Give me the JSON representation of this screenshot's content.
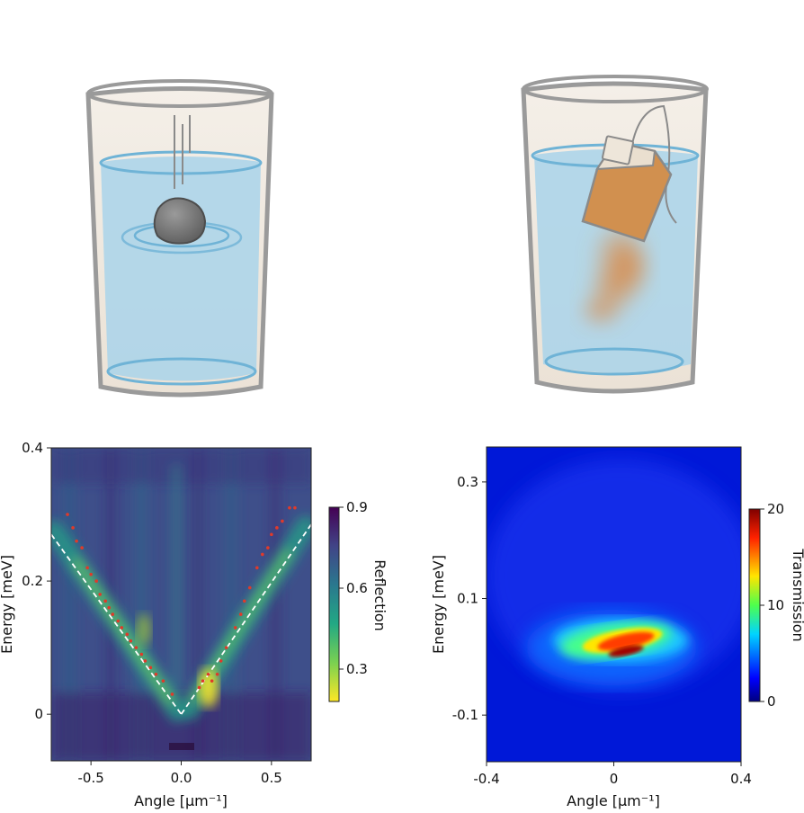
{
  "illustrations": [
    {
      "name": "glass-with-stone",
      "objects": [
        "stone",
        "ripples",
        "water"
      ]
    },
    {
      "name": "glass-with-tea-bag",
      "objects": [
        "tea-bag",
        "tea-plume",
        "water"
      ]
    }
  ],
  "colors": {
    "water": "#a9d4ea",
    "water_rim": "#6fb3d6",
    "glass_outline": "#9a9a9a",
    "glass_fill": "#efe6dc",
    "stone": "#7e7e7e",
    "tea": "#d88a4a",
    "dashed_line": "#ffffff",
    "points": "#e03a2a"
  },
  "chart_data": [
    {
      "type": "heatmap",
      "colormap": "viridis-reversed",
      "xlabel": "Angle [μm⁻¹]",
      "ylabel": "Energy  [meV]",
      "xlim": [
        -0.72,
        0.72
      ],
      "ylim": [
        -0.07,
        0.4
      ],
      "xticks": [
        -0.5,
        0.0,
        0.5
      ],
      "xtick_labels": [
        "-0.5",
        "0.0",
        "0.5"
      ],
      "yticks": [
        0,
        0.2,
        0.4
      ],
      "ytick_labels": [
        "0",
        "0.2",
        "0.4"
      ],
      "colorbar": {
        "label": "Reflection",
        "range": [
          0.18,
          0.9
        ],
        "ticks": [
          0.3,
          0.6,
          0.9
        ],
        "tick_labels": [
          "0.3",
          "0.6",
          "0.9"
        ]
      },
      "dashed_lines": [
        {
          "x": [
            -0.72,
            0.0
          ],
          "y": [
            0.27,
            0.0
          ]
        },
        {
          "x": [
            0.0,
            0.72
          ],
          "y": [
            0.0,
            0.285
          ]
        }
      ],
      "points": {
        "x": [
          -0.63,
          -0.6,
          -0.58,
          -0.55,
          -0.52,
          -0.5,
          -0.47,
          -0.45,
          -0.42,
          -0.4,
          -0.38,
          -0.35,
          -0.33,
          -0.3,
          -0.28,
          -0.25,
          -0.22,
          -0.2,
          -0.17,
          -0.14,
          -0.1,
          -0.05,
          0.1,
          0.12,
          0.15,
          0.17,
          0.2,
          0.22,
          0.25,
          0.3,
          0.33,
          0.35,
          0.38,
          0.42,
          0.45,
          0.48,
          0.5,
          0.53,
          0.56,
          0.6,
          0.63
        ],
        "y": [
          0.3,
          0.28,
          0.26,
          0.25,
          0.22,
          0.21,
          0.2,
          0.18,
          0.17,
          0.16,
          0.15,
          0.14,
          0.13,
          0.12,
          0.11,
          0.1,
          0.09,
          0.08,
          0.07,
          0.06,
          0.05,
          0.03,
          0.04,
          0.05,
          0.06,
          0.05,
          0.06,
          0.08,
          0.1,
          0.13,
          0.15,
          0.17,
          0.19,
          0.22,
          0.24,
          0.25,
          0.27,
          0.28,
          0.29,
          0.31,
          0.31
        ]
      }
    },
    {
      "type": "heatmap",
      "colormap": "jet",
      "xlabel": "Angle [μm⁻¹]",
      "ylabel": "Energy  [meV]",
      "xlim": [
        -0.4,
        0.4
      ],
      "ylim": [
        -0.18,
        0.36
      ],
      "xticks": [
        -0.4,
        0,
        0.4
      ],
      "xtick_labels": [
        "-0.4",
        "0",
        "0.4"
      ],
      "yticks": [
        -0.1,
        0.1,
        0.3
      ],
      "ytick_labels": [
        "-0.1",
        "0.1",
        "0.3"
      ],
      "colorbar": {
        "label": "Transmission",
        "range": [
          0,
          20
        ],
        "ticks": [
          0,
          10,
          20
        ],
        "tick_labels": [
          "0",
          "10",
          "20"
        ]
      }
    }
  ]
}
